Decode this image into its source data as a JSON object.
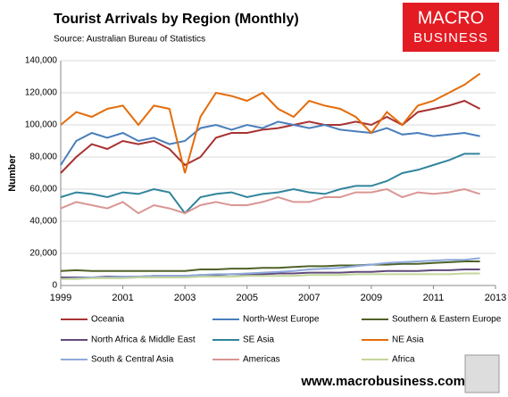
{
  "chart_data": {
    "type": "line",
    "title": "Tourist Arrivals by Region (Monthly)",
    "subtitle": "Source: Australian Bureau of Statistics",
    "logo": [
      "MACRO",
      "BUSINESS"
    ],
    "footer": "www.macrobusiness.com.au",
    "y_label": "Number",
    "xlim": [
      1999,
      2013
    ],
    "xticks": [
      1999,
      2001,
      2003,
      2005,
      2007,
      2009,
      2011,
      2013
    ],
    "ylim": [
      0,
      140000
    ],
    "yticks": [
      0,
      {
        "value": 20000,
        "label": "20,000"
      },
      {
        "value": 40000,
        "label": "40,000"
      },
      {
        "value": 60000,
        "label": "60,000"
      },
      {
        "value": 80000,
        "label": "80,000"
      },
      {
        "value": 100000,
        "label": "100,000"
      },
      {
        "value": 120000,
        "label": "120,000"
      },
      {
        "value": 140000,
        "label": "140,000"
      }
    ],
    "grid": true,
    "x": [
      1999,
      1999.5,
      2000,
      2000.5,
      2001,
      2001.5,
      2002,
      2002.5,
      2003,
      2003.5,
      2004,
      2004.5,
      2005,
      2005.5,
      2006,
      2006.5,
      2007,
      2007.5,
      2008,
      2008.5,
      2009,
      2009.5,
      2010,
      2010.5,
      2011,
      2011.5,
      2012,
      2012.5
    ],
    "series": [
      {
        "name": "Oceania",
        "color": "#a83232",
        "values": [
          70000,
          80000,
          88000,
          85000,
          90000,
          88000,
          90000,
          85000,
          75000,
          80000,
          92000,
          95000,
          95000,
          97000,
          98000,
          100000,
          102000,
          100000,
          100000,
          102000,
          100000,
          105000,
          100000,
          108000,
          110000,
          112000,
          115000,
          110000
        ]
      },
      {
        "name": "North-West Europe",
        "color": "#4a7ebb",
        "values": [
          75000,
          90000,
          95000,
          92000,
          95000,
          90000,
          92000,
          88000,
          90000,
          98000,
          100000,
          97000,
          100000,
          98000,
          102000,
          100000,
          98000,
          100000,
          97000,
          96000,
          95000,
          98000,
          94000,
          95000,
          93000,
          94000,
          95000,
          93000
        ]
      },
      {
        "name": "Southern & Eastern Europe",
        "color": "#4f6228",
        "values": [
          9000,
          9500,
          9000,
          9000,
          9000,
          9000,
          9000,
          9000,
          9000,
          10000,
          10000,
          10500,
          10500,
          11000,
          11000,
          11500,
          12000,
          12000,
          12500,
          12500,
          13000,
          13000,
          13500,
          13500,
          14000,
          14500,
          15000,
          15000
        ]
      },
      {
        "name": "North Africa & Middle East",
        "color": "#604a7b",
        "values": [
          5000,
          5000,
          5000,
          5500,
          5500,
          5500,
          6000,
          6000,
          6000,
          6500,
          6500,
          7000,
          7000,
          7000,
          7500,
          7500,
          8000,
          8000,
          8000,
          8500,
          8500,
          9000,
          9000,
          9000,
          9500,
          9500,
          10000,
          10000
        ]
      },
      {
        "name": "SE Asia",
        "color": "#31859c",
        "values": [
          55000,
          58000,
          57000,
          55000,
          58000,
          57000,
          60000,
          58000,
          45000,
          55000,
          57000,
          58000,
          55000,
          57000,
          58000,
          60000,
          58000,
          57000,
          60000,
          62000,
          62000,
          65000,
          70000,
          72000,
          75000,
          78000,
          82000,
          82000
        ]
      },
      {
        "name": "NE Asia",
        "color": "#e46c0a",
        "values": [
          100000,
          108000,
          105000,
          110000,
          112000,
          100000,
          112000,
          110000,
          70000,
          105000,
          120000,
          118000,
          115000,
          120000,
          110000,
          105000,
          115000,
          112000,
          110000,
          105000,
          95000,
          108000,
          100000,
          112000,
          115000,
          120000,
          125000,
          132000
        ]
      },
      {
        "name": "South & Central Asia",
        "color": "#8ea9db",
        "values": [
          4000,
          4500,
          5000,
          5000,
          5500,
          5500,
          6000,
          6000,
          6000,
          6500,
          7000,
          7000,
          7500,
          8000,
          8500,
          9000,
          10000,
          10500,
          11000,
          12000,
          13000,
          14000,
          14500,
          15000,
          15500,
          16000,
          16000,
          17000
        ]
      },
      {
        "name": "Americas",
        "color": "#d99694",
        "values": [
          48000,
          52000,
          50000,
          48000,
          52000,
          45000,
          50000,
          48000,
          45000,
          50000,
          52000,
          50000,
          50000,
          52000,
          55000,
          52000,
          52000,
          55000,
          55000,
          58000,
          58000,
          60000,
          55000,
          58000,
          57000,
          58000,
          60000,
          57000
        ]
      },
      {
        "name": "Africa",
        "color": "#c3d69b",
        "values": [
          4000,
          4000,
          4500,
          4500,
          4500,
          5000,
          5000,
          5000,
          5000,
          5500,
          5500,
          5500,
          6000,
          6000,
          6000,
          6000,
          6500,
          6500,
          6500,
          7000,
          7000,
          7000,
          7000,
          7000,
          7000,
          7000,
          7500,
          7500
        ]
      }
    ]
  }
}
